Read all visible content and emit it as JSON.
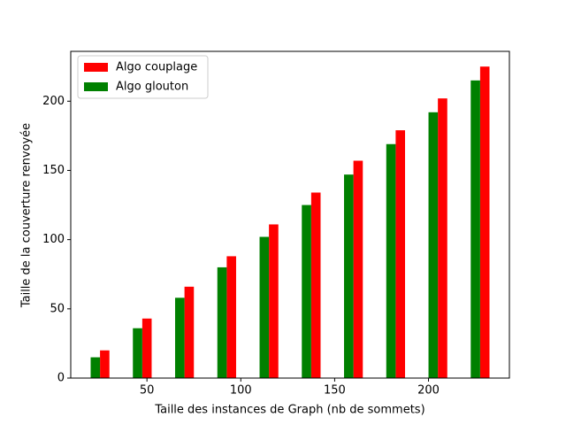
{
  "chart_data": {
    "type": "bar",
    "xlabel": "Taille des instances de Graph (nb de sommets)",
    "ylabel": "Taille de la couverture renvoyée",
    "bar_width": 5,
    "series": [
      {
        "name": "Algo couplage",
        "color": "#ff0000",
        "x": [
          27.5,
          50,
          72.5,
          95,
          117.5,
          140,
          162.5,
          185,
          207.5,
          230
        ],
        "values": [
          20,
          43,
          66,
          88,
          111,
          134,
          157,
          179,
          202,
          225
        ]
      },
      {
        "name": "Algo glouton",
        "color": "#008000",
        "x": [
          22.5,
          45,
          67.5,
          90,
          112.5,
          135,
          157.5,
          180,
          202.5,
          225
        ],
        "values": [
          15,
          36,
          58,
          80,
          102,
          125,
          147,
          169,
          192,
          215
        ]
      }
    ],
    "xlim": [
      9.4,
      243.1
    ],
    "xticks": [
      50,
      100,
      150,
      200
    ],
    "ylim": [
      0,
      236
    ],
    "yticks": [
      0,
      50,
      100,
      150,
      200
    ],
    "legend": "upper left"
  }
}
